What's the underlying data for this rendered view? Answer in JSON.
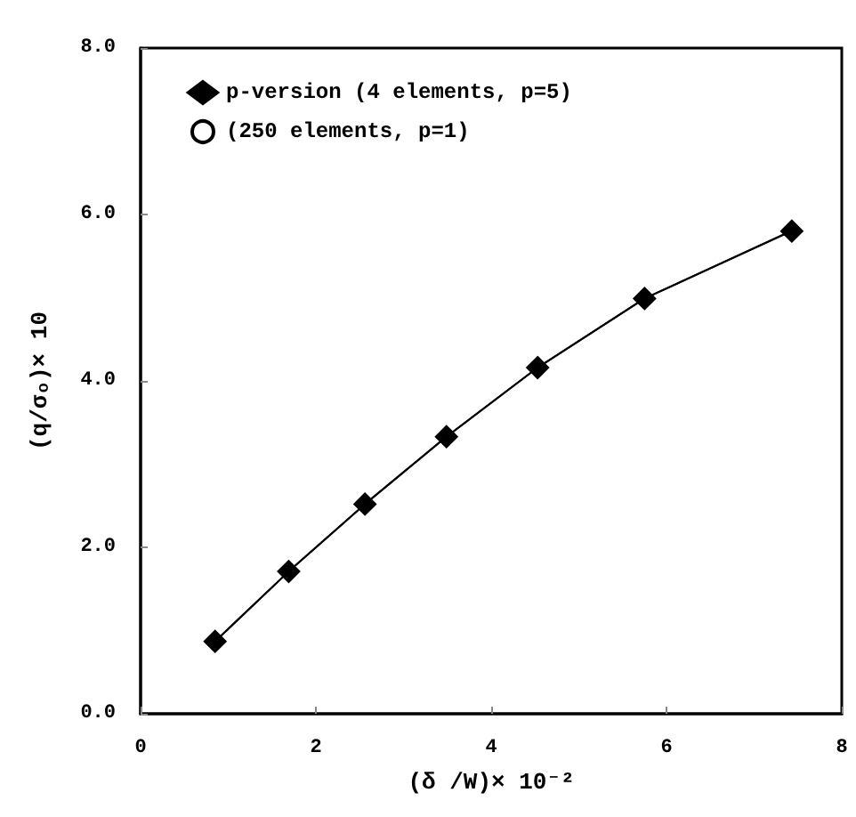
{
  "chart_data": {
    "type": "line",
    "xlabel": "(δ /W)× 10⁻²",
    "ylabel": "(q/σₒ)× 10",
    "xlim": [
      0,
      8
    ],
    "xticks": [
      0,
      2,
      4,
      6,
      8
    ],
    "ylim": [
      0,
      8
    ],
    "yticks": [
      {
        "value": 0,
        "label": "0.0"
      },
      {
        "value": 2,
        "label": "2.0"
      },
      {
        "value": 4,
        "label": "4.0"
      },
      {
        "value": 6,
        "label": "6.0"
      },
      {
        "value": 8,
        "label": "8.0"
      }
    ],
    "grid": false,
    "legend": "top left",
    "line_style": "solid",
    "series": [
      {
        "name": "p-version (4 elements, p=5)",
        "color": "#000000",
        "marker": "diamond",
        "x": [
          0.85,
          1.69,
          2.56,
          3.49,
          4.53,
          5.75,
          7.43
        ],
        "values": [
          0.87,
          1.71,
          2.52,
          3.33,
          4.16,
          4.99,
          5.8
        ]
      },
      {
        "name": "(250 elements, p=1)",
        "color": "#000000",
        "marker": "circle",
        "x": [
          0.85,
          1.69,
          2.56,
          3.49,
          4.53,
          5.75,
          7.5
        ],
        "values": [
          0.87,
          1.71,
          2.52,
          3.33,
          4.16,
          4.99,
          5.84
        ]
      }
    ]
  }
}
